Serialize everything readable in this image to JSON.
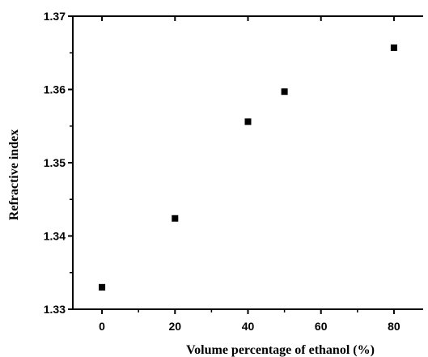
{
  "chart_data": {
    "type": "scatter",
    "title": "",
    "xlabel": "Volume percentage of ethanol (%)",
    "ylabel": "Refractive index",
    "xlim": [
      -8,
      88
    ],
    "ylim": [
      1.33,
      1.37
    ],
    "xticks": [
      0,
      20,
      40,
      60,
      80
    ],
    "xtick_labels": [
      "0",
      "20",
      "40",
      "60",
      "80"
    ],
    "yticks": [
      1.33,
      1.34,
      1.35,
      1.36,
      1.37
    ],
    "ytick_labels": [
      "1.33",
      "1.34",
      "1.35",
      "1.36",
      "1.37"
    ],
    "grid": false,
    "legend": "none",
    "marker": "square",
    "marker_color": "#000000",
    "series": [
      {
        "x": [
          0,
          20,
          40,
          50,
          80
        ],
        "y": [
          1.333,
          1.3424,
          1.3556,
          1.3597,
          1.3657
        ]
      }
    ]
  }
}
